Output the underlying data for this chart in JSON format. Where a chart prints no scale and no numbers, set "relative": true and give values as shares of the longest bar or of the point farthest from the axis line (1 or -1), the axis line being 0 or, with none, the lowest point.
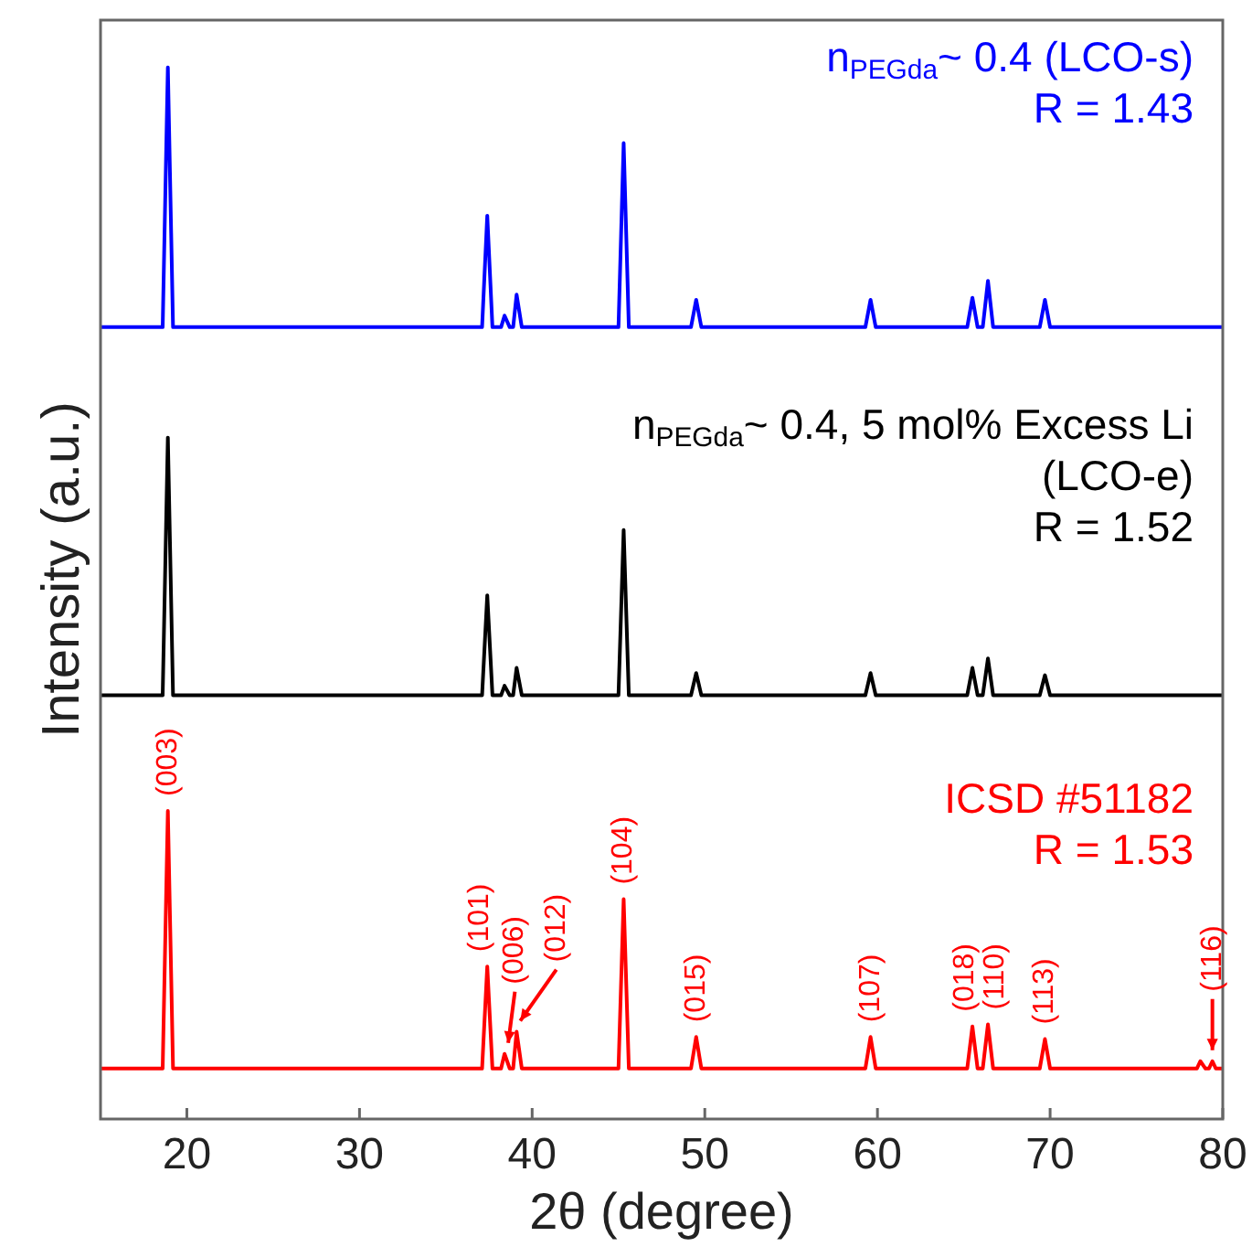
{
  "chart_data": {
    "type": "line",
    "relative": true,
    "xlabel": "2θ (degree)",
    "ylabel": "Intensity (a.u.)",
    "xlim": [
      15,
      80
    ],
    "xticks": [
      20,
      30,
      40,
      50,
      60,
      70,
      80
    ],
    "x": [
      15,
      18.6,
      18.9,
      19.2,
      37.1,
      37.4,
      37.7,
      38.2,
      38.4,
      38.7,
      38.9,
      39.1,
      39.4,
      45.0,
      45.3,
      45.6,
      49.2,
      49.5,
      49.8,
      59.3,
      59.6,
      59.9,
      65.2,
      65.5,
      65.8,
      66.1,
      66.4,
      66.7,
      69.4,
      69.7,
      70.0,
      78.5,
      78.7,
      79.0,
      79.2,
      79.4,
      79.6,
      80
    ],
    "series": [
      {
        "name": "n$_{PEGda}$~ 0.4 (LCO-s)",
        "color": "#0000ff",
        "values": [
          0.753,
          0.753,
          1.0,
          0.753,
          0.753,
          0.859,
          0.753,
          0.753,
          0.764,
          0.753,
          0.753,
          0.784,
          0.753,
          0.753,
          0.928,
          0.753,
          0.753,
          0.779,
          0.753,
          0.753,
          0.779,
          0.753,
          0.753,
          0.781,
          0.753,
          0.753,
          0.797,
          0.753,
          0.753,
          0.779,
          0.753,
          0.753,
          0.753,
          0.753,
          0.753,
          0.753,
          0.753,
          0.753
        ]
      },
      {
        "name": "n$_{PEGda}$~ 0.4, 5 mol% Excess Li (LCO-e)",
        "color": "#000000",
        "values": [
          0.403,
          0.403,
          0.648,
          0.403,
          0.403,
          0.498,
          0.403,
          0.403,
          0.412,
          0.403,
          0.403,
          0.429,
          0.403,
          0.403,
          0.56,
          0.403,
          0.403,
          0.424,
          0.403,
          0.403,
          0.424,
          0.403,
          0.403,
          0.429,
          0.403,
          0.403,
          0.438,
          0.403,
          0.403,
          0.422,
          0.403,
          0.403,
          0.403,
          0.403,
          0.403,
          0.403,
          0.403,
          0.403
        ]
      },
      {
        "name": "ICSD #51182",
        "color": "#ff0000",
        "values": [
          0.048,
          0.048,
          0.293,
          0.048,
          0.048,
          0.145,
          0.048,
          0.048,
          0.062,
          0.048,
          0.048,
          0.083,
          0.048,
          0.048,
          0.209,
          0.048,
          0.048,
          0.078,
          0.048,
          0.048,
          0.078,
          0.048,
          0.048,
          0.088,
          0.048,
          0.048,
          0.09,
          0.048,
          0.048,
          0.076,
          0.048,
          0.048,
          0.055,
          0.048,
          0.048,
          0.055,
          0.048,
          0.048
        ]
      }
    ],
    "annotations": [
      "R = 1.43",
      "R = 1.52",
      "R = 1.53",
      {
        "text": "(003)",
        "x": 18.9,
        "y": 0.293
      },
      {
        "text": "(101)",
        "x": 37.4,
        "y": 0.145
      },
      {
        "text": "(006)",
        "x": 38.4,
        "y": 0.062
      },
      {
        "text": "(012)",
        "x": 39.1,
        "y": 0.083
      },
      {
        "text": "(104)",
        "x": 45.3,
        "y": 0.209
      },
      {
        "text": "(015)",
        "x": 49.5,
        "y": 0.078
      },
      {
        "text": "(107)",
        "x": 59.6,
        "y": 0.078
      },
      {
        "text": "(018)",
        "x": 65.5,
        "y": 0.088
      },
      {
        "text": "(110)",
        "x": 66.4,
        "y": 0.09
      },
      {
        "text": "(113)",
        "x": 69.7,
        "y": 0.076
      },
      {
        "text": "(116)",
        "x": 79.4,
        "y": 0.055
      }
    ]
  }
}
